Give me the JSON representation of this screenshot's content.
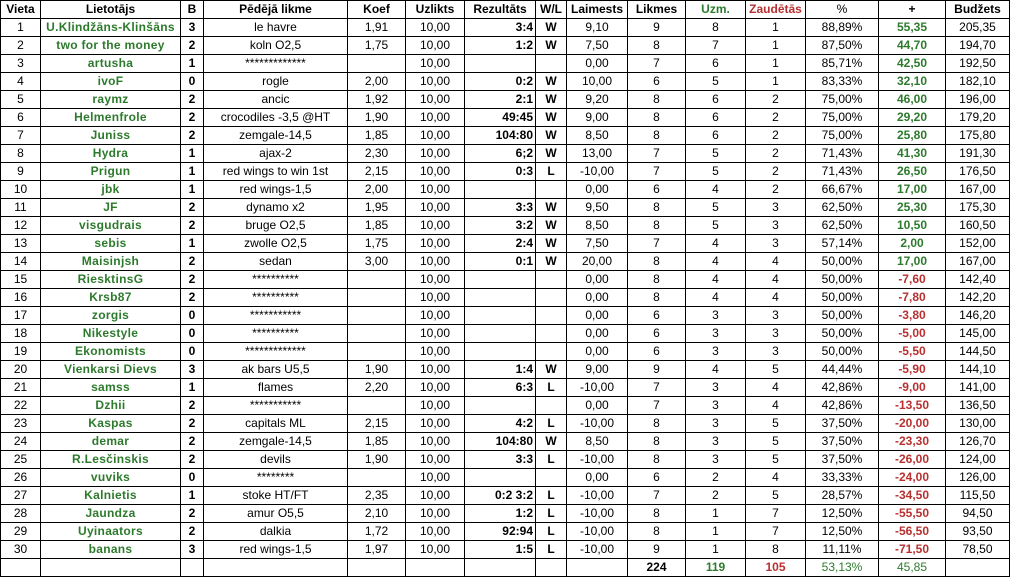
{
  "colors": {
    "green": "#2d7a2d",
    "red": "#b83030"
  },
  "headers": [
    "Vieta",
    "Lietotājs",
    "B",
    "Pēdējā likme",
    "Koef",
    "Uzlikts",
    "Rezultāts",
    "W/L",
    "Laimests",
    "Likmes",
    "Uzm.",
    "Zaudētās",
    "%",
    "+",
    "Budžets"
  ],
  "rows": [
    [
      "1",
      "U.Klindžāns-Klinšāns",
      "3",
      "le havre",
      "1,91",
      "10,00",
      "3:4",
      "W",
      "9,10",
      "9",
      "8",
      "1",
      "88,89%",
      "55,35",
      "205,35"
    ],
    [
      "2",
      "two for the money",
      "2",
      "koln O2,5",
      "1,75",
      "10,00",
      "1:2",
      "W",
      "7,50",
      "8",
      "7",
      "1",
      "87,50%",
      "44,70",
      "194,70"
    ],
    [
      "3",
      "artusha",
      "1",
      "*************",
      "",
      "10,00",
      "",
      "",
      "0,00",
      "7",
      "6",
      "1",
      "85,71%",
      "42,50",
      "192,50"
    ],
    [
      "4",
      "ivoF",
      "0",
      "rogle",
      "2,00",
      "10,00",
      "0:2",
      "W",
      "10,00",
      "6",
      "5",
      "1",
      "83,33%",
      "32,10",
      "182,10"
    ],
    [
      "5",
      "raymz",
      "2",
      "ancic",
      "1,92",
      "10,00",
      "2:1",
      "W",
      "9,20",
      "8",
      "6",
      "2",
      "75,00%",
      "46,00",
      "196,00"
    ],
    [
      "6",
      "Helmenfrole",
      "2",
      "crocodiles -3,5 @HT",
      "1,90",
      "10,00",
      "49:45",
      "W",
      "9,00",
      "8",
      "6",
      "2",
      "75,00%",
      "29,20",
      "179,20"
    ],
    [
      "7",
      "Juniss",
      "2",
      "zemgale-14,5",
      "1,85",
      "10,00",
      "104:80",
      "W",
      "8,50",
      "8",
      "6",
      "2",
      "75,00%",
      "25,80",
      "175,80"
    ],
    [
      "8",
      "Hydra",
      "1",
      "ajax-2",
      "2,30",
      "10,00",
      "6;2",
      "W",
      "13,00",
      "7",
      "5",
      "2",
      "71,43%",
      "41,30",
      "191,30"
    ],
    [
      "9",
      "Prigun",
      "1",
      "red wings  to win 1st",
      "2,15",
      "10,00",
      "0:3",
      "L",
      "-10,00",
      "7",
      "5",
      "2",
      "71,43%",
      "26,50",
      "176,50"
    ],
    [
      "10",
      "jbk",
      "1",
      "red wings-1,5",
      "2,00",
      "10,00",
      "",
      "",
      "0,00",
      "6",
      "4",
      "2",
      "66,67%",
      "17,00",
      "167,00"
    ],
    [
      "11",
      "JF",
      "2",
      "dynamo x2",
      "1,95",
      "10,00",
      "3:3",
      "W",
      "9,50",
      "8",
      "5",
      "3",
      "62,50%",
      "25,30",
      "175,30"
    ],
    [
      "12",
      "visgudrais",
      "2",
      "bruge O2,5",
      "1,85",
      "10,00",
      "3:2",
      "W",
      "8,50",
      "8",
      "5",
      "3",
      "62,50%",
      "10,50",
      "160,50"
    ],
    [
      "13",
      "sebis",
      "1",
      "zwolle O2,5",
      "1,75",
      "10,00",
      "2:4",
      "W",
      "7,50",
      "7",
      "4",
      "3",
      "57,14%",
      "2,00",
      "152,00"
    ],
    [
      "14",
      "Maisinjsh",
      "2",
      "sedan",
      "3,00",
      "10,00",
      "0:1",
      "W",
      "20,00",
      "8",
      "4",
      "4",
      "50,00%",
      "17,00",
      "167,00"
    ],
    [
      "15",
      "RiesktinsG",
      "2",
      "**********",
      "",
      "10,00",
      "",
      "",
      "0,00",
      "8",
      "4",
      "4",
      "50,00%",
      "-7,60",
      "142,40"
    ],
    [
      "16",
      "Krsb87",
      "2",
      "**********",
      "",
      "10,00",
      "",
      "",
      "0,00",
      "8",
      "4",
      "4",
      "50,00%",
      "-7,80",
      "142,20"
    ],
    [
      "17",
      "zorgis",
      "0",
      "***********",
      "",
      "10,00",
      "",
      "",
      "0,00",
      "6",
      "3",
      "3",
      "50,00%",
      "-3,80",
      "146,20"
    ],
    [
      "18",
      "Nikestyle",
      "0",
      "**********",
      "",
      "10,00",
      "",
      "",
      "0,00",
      "6",
      "3",
      "3",
      "50,00%",
      "-5,00",
      "145,00"
    ],
    [
      "19",
      "Ekonomists",
      "0",
      "*************",
      "",
      "10,00",
      "",
      "",
      "0,00",
      "6",
      "3",
      "3",
      "50,00%",
      "-5,50",
      "144,50"
    ],
    [
      "20",
      "Vienkarsi Dievs",
      "3",
      "ak bars U5,5",
      "1,90",
      "10,00",
      "1:4",
      "W",
      "9,00",
      "9",
      "4",
      "5",
      "44,44%",
      "-5,90",
      "144,10"
    ],
    [
      "21",
      "samss",
      "1",
      "flames",
      "2,20",
      "10,00",
      "6:3",
      "L",
      "-10,00",
      "7",
      "3",
      "4",
      "42,86%",
      "-9,00",
      "141,00"
    ],
    [
      "22",
      "Dzhii",
      "2",
      "***********",
      "",
      "10,00",
      "",
      "",
      "0,00",
      "7",
      "3",
      "4",
      "42,86%",
      "-13,50",
      "136,50"
    ],
    [
      "23",
      "Kaspas",
      "2",
      "capitals ML",
      "2,15",
      "10,00",
      "4:2",
      "L",
      "-10,00",
      "8",
      "3",
      "5",
      "37,50%",
      "-20,00",
      "130,00"
    ],
    [
      "24",
      "demar",
      "2",
      "zemgale-14,5",
      "1,85",
      "10,00",
      "104:80",
      "W",
      "8,50",
      "8",
      "3",
      "5",
      "37,50%",
      "-23,30",
      "126,70"
    ],
    [
      "25",
      "R.Lesčinskis",
      "2",
      "devils",
      "1,90",
      "10,00",
      "3:3",
      "L",
      "-10,00",
      "8",
      "3",
      "5",
      "37,50%",
      "-26,00",
      "124,00"
    ],
    [
      "26",
      "vuviks",
      "0",
      "********",
      "",
      "10,00",
      "",
      "",
      "0,00",
      "6",
      "2",
      "4",
      "33,33%",
      "-24,00",
      "126,00"
    ],
    [
      "27",
      "Kalnietis",
      "1",
      "stoke HT/FT",
      "2,35",
      "10,00",
      "0:2 3:2",
      "L",
      "-10,00",
      "7",
      "2",
      "5",
      "28,57%",
      "-34,50",
      "115,50"
    ],
    [
      "28",
      "Jaundza",
      "2",
      "amur O5,5",
      "2,10",
      "10,00",
      "1:2",
      "L",
      "-10,00",
      "8",
      "1",
      "7",
      "12,50%",
      "-55,50",
      "94,50"
    ],
    [
      "29",
      "Uyinaators",
      "2",
      "dalkia",
      "1,72",
      "10,00",
      "92:94",
      "L",
      "-10,00",
      "8",
      "1",
      "7",
      "12,50%",
      "-56,50",
      "93,50"
    ],
    [
      "30",
      "banans",
      "3",
      "red wings-1,5",
      "1,97",
      "10,00",
      "1:5",
      "L",
      "-10,00",
      "9",
      "1",
      "8",
      "11,11%",
      "-71,50",
      "78,50"
    ]
  ],
  "totals": {
    "likmes": "224",
    "uzm": "119",
    "zaudetas": "105",
    "percent": "53,13%",
    "plus": "45,85"
  }
}
